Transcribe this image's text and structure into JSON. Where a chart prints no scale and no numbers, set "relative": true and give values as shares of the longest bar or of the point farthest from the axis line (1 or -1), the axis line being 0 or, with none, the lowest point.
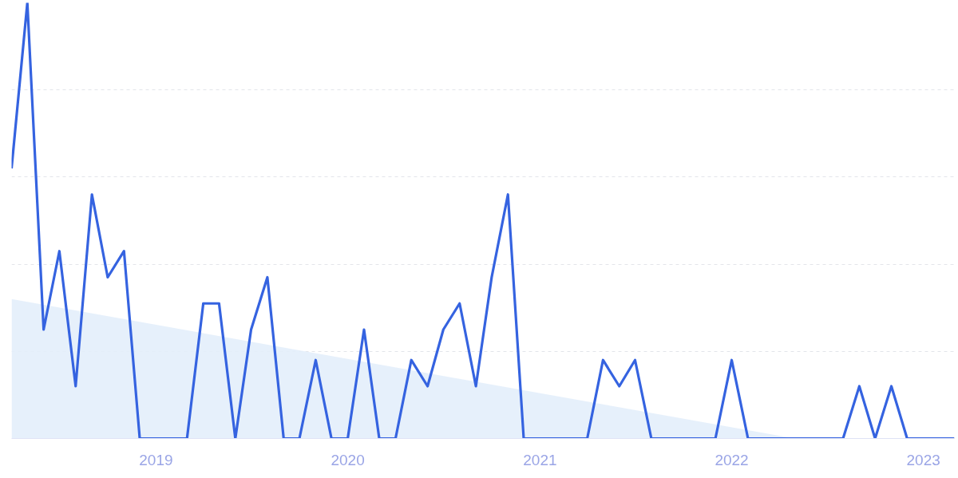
{
  "chart_data": {
    "type": "line",
    "relative": true,
    "grid": "y",
    "x": [
      "2018-04",
      "2018-05",
      "2018-06",
      "2018-07",
      "2018-08",
      "2018-09",
      "2018-10",
      "2018-11",
      "2018-12",
      "2019-01",
      "2019-02",
      "2019-03",
      "2019-04",
      "2019-05",
      "2019-06",
      "2019-07",
      "2019-08",
      "2019-09",
      "2019-10",
      "2019-11",
      "2019-12",
      "2020-01",
      "2020-02",
      "2020-03",
      "2020-04",
      "2020-05",
      "2020-06",
      "2020-07",
      "2020-08",
      "2020-09",
      "2020-10",
      "2020-11",
      "2020-12",
      "2021-01",
      "2021-02",
      "2021-03",
      "2021-04",
      "2021-05",
      "2021-06",
      "2021-07",
      "2021-08",
      "2021-09",
      "2021-10",
      "2021-11",
      "2021-12",
      "2022-01",
      "2022-02",
      "2022-03",
      "2022-04",
      "2022-05",
      "2022-06",
      "2022-07",
      "2022-08",
      "2022-09",
      "2022-10",
      "2022-11",
      "2022-12",
      "2023-01",
      "2023-02",
      "2023-03"
    ],
    "xlim": [
      "2018-04",
      "2023-03"
    ],
    "xticks": [
      {
        "value": "2019-01",
        "label": "2019"
      },
      {
        "value": "2020-01",
        "label": "2020"
      },
      {
        "value": "2021-01",
        "label": "2021"
      },
      {
        "value": "2022-01",
        "label": "2022"
      },
      {
        "value": "2023-01",
        "label": "2023"
      }
    ],
    "series": [
      {
        "color": "#3563e0",
        "values": [
          0.62,
          1,
          0.25,
          0.43,
          0.12,
          0.56,
          0.37,
          0.43,
          0,
          0,
          0,
          0,
          0.31,
          0.31,
          0,
          0.25,
          0.37,
          0,
          0,
          0.18,
          0,
          0,
          0.25,
          0,
          0,
          0.18,
          0.12,
          0.25,
          0.31,
          0.12,
          0.37,
          0.56,
          0,
          0,
          0,
          0,
          0,
          0.18,
          0.12,
          0.18,
          0,
          0,
          0,
          0,
          0,
          0.18,
          0,
          0,
          0,
          0,
          0,
          0,
          0,
          0.12,
          0,
          0.12,
          0,
          0,
          0,
          0
        ]
      },
      {
        "type": "area",
        "color": "#e3eefb",
        "x": [
          "2018-04",
          "2022-05"
        ],
        "values": [
          0.32,
          0
        ]
      }
    ]
  }
}
